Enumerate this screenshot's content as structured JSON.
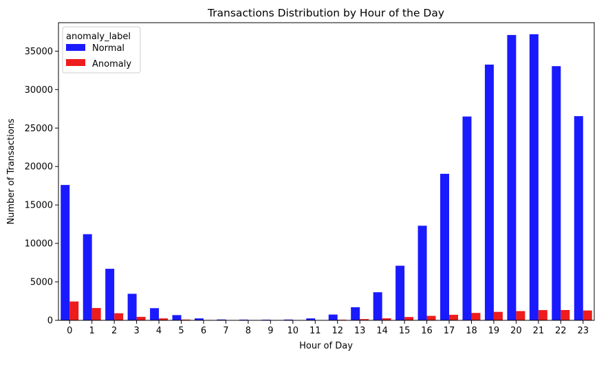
{
  "chart_data": {
    "type": "bar",
    "title": "Transactions Distribution by Hour of the Day",
    "xlabel": "Hour of Day",
    "ylabel": "Number of Transactions",
    "categories": [
      "0",
      "1",
      "2",
      "3",
      "4",
      "5",
      "6",
      "7",
      "8",
      "9",
      "10",
      "11",
      "12",
      "13",
      "14",
      "15",
      "16",
      "17",
      "18",
      "19",
      "20",
      "21",
      "22",
      "23"
    ],
    "ylim": [
      0,
      38700
    ],
    "yticks": [
      0,
      5000,
      10000,
      15000,
      20000,
      25000,
      30000,
      35000
    ],
    "grid": false,
    "legend": {
      "title": "anomaly_label",
      "placement": "upper-left"
    },
    "series": [
      {
        "name": "Normal",
        "color": "#1a1aff",
        "values": [
          17600,
          11200,
          6700,
          3450,
          1580,
          680,
          250,
          110,
          90,
          80,
          100,
          250,
          750,
          1700,
          3650,
          7100,
          12300,
          19050,
          26500,
          33250,
          37100,
          37200,
          33050,
          26550
        ]
      },
      {
        "name": "Anomaly",
        "color": "#ee1c1c",
        "values": [
          2450,
          1600,
          920,
          450,
          250,
          100,
          50,
          20,
          20,
          15,
          20,
          40,
          80,
          160,
          260,
          430,
          580,
          720,
          960,
          1100,
          1200,
          1330,
          1340,
          1280
        ]
      }
    ]
  }
}
